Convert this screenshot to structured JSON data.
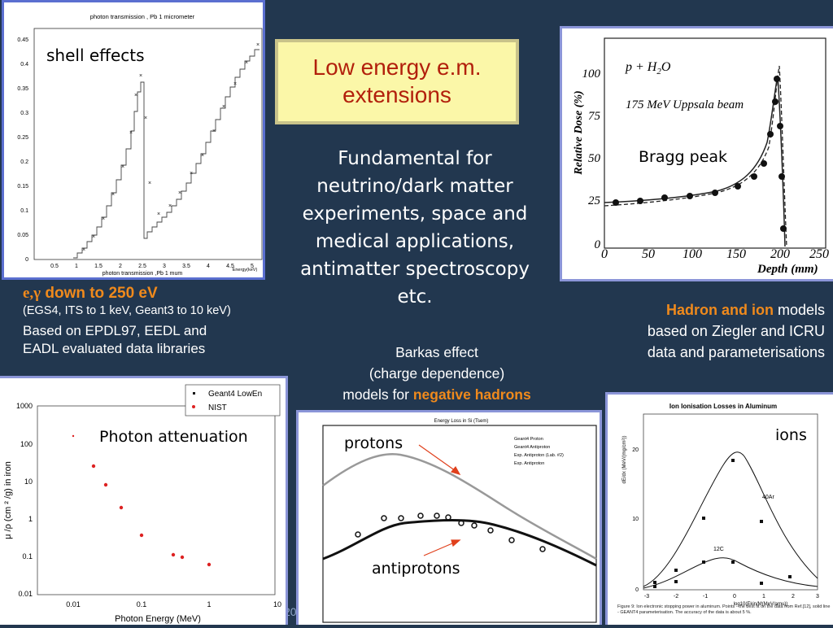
{
  "title": {
    "line1": "Low energy e.m.",
    "line2": "extensions"
  },
  "center_text": {
    "lines": [
      "Fundamental for",
      "neutrino/dark matter",
      "experiments, space and",
      "medical applications,",
      "antimatter spectroscopy",
      "etc."
    ]
  },
  "left_text": {
    "heading_symbol": "e,γ",
    "heading_rest": " down to 250 eV",
    "sub": "(EGS4, ITS to 1 keV, Geant3 to 10 keV)",
    "line1": "Based on EPDL97, EEDL and",
    "line2": "EADL evaluated data libraries"
  },
  "right_text": {
    "highlight": "Hadron and ion",
    "rest1": " models",
    "line2": "based on Ziegler and ICRU",
    "line3": "data and parameterisations"
  },
  "barkas_text": {
    "line1": "Barkas effect",
    "line2": "(charge dependence)",
    "line3a": "models for ",
    "line3b": "negative hadrons"
  },
  "slide_number": "20",
  "colors": {
    "background": "#22374f",
    "title_text": "#b2200c",
    "highlight": "#e8580c",
    "label_blue": "#1c2ad8"
  },
  "panel_shell": {
    "label": "shell effects",
    "title": "photon transmission , Pb 1 micrometer",
    "xlabel": "photon transmission ,Pb 1 mum",
    "xlabel_corner": "Energy(keV)",
    "yticks": [
      "0.45",
      "0.4",
      "0.35",
      "0.3",
      "0.25",
      "0.2",
      "0.15",
      "0.1",
      "0.05",
      "0"
    ],
    "xticks": [
      "0.5",
      "1",
      "1.5",
      "2",
      "2.5",
      "3",
      "3.5",
      "4",
      "4.5",
      "5"
    ]
  },
  "panel_bragg": {
    "label": "Bragg peak",
    "ylabel": "Relative Dose (%)",
    "xlabel": "Depth (mm)",
    "annot1": "p + H",
    "annot1_sub": "2",
    "annot1_end": "O",
    "annot2": "175 MeV Uppsala beam",
    "yticks": [
      "100",
      "75",
      "50",
      "25",
      "0"
    ],
    "xticks": [
      "0",
      "50",
      "100",
      "150",
      "200",
      "250"
    ]
  },
  "panel_atten": {
    "label": "Photon attenuation",
    "legend": [
      "Geant4 LowEn",
      "NIST"
    ],
    "ylabel": "μ /ρ (cm ² /g) in iron",
    "xlabel": "Photon Energy (MeV)",
    "yticks": [
      "1000",
      "100",
      "10",
      "1",
      "0.1",
      "0.01"
    ],
    "xticks": [
      "0.01",
      "0.1",
      "1",
      "10"
    ]
  },
  "panel_protons": {
    "label_protons": "protons",
    "label_antiprotons": "antiprotons",
    "title": "Energy Loss in Si (Tsem)",
    "legend": [
      "Geant4 Proton",
      "Geant4 Antiproton",
      "Exp. Antiproton (Lab. #2)",
      "Exp. Antiproton"
    ]
  },
  "panel_ions": {
    "label": "ions",
    "title": "Ion Ionisation Losses in Aluminum",
    "ylabel": "dE/dx (MeV/(mg/cm²))",
    "xlabel": "log10(Ekin/M(MeV/amu))",
    "ar_label": "40Ar",
    "c_label": "12C",
    "yticks": [
      "20",
      "10",
      "0"
    ],
    "xticks": [
      "-3",
      "-2",
      "-1",
      "0",
      "1",
      "2",
      "3"
    ],
    "caption": "Figure 9: Ion electronic stopping power in aluminum. Points - the best fit on the data from Ref.[12], solid line - GEANT4 parameterisation. The accuracy of the data is about 5 %."
  }
}
